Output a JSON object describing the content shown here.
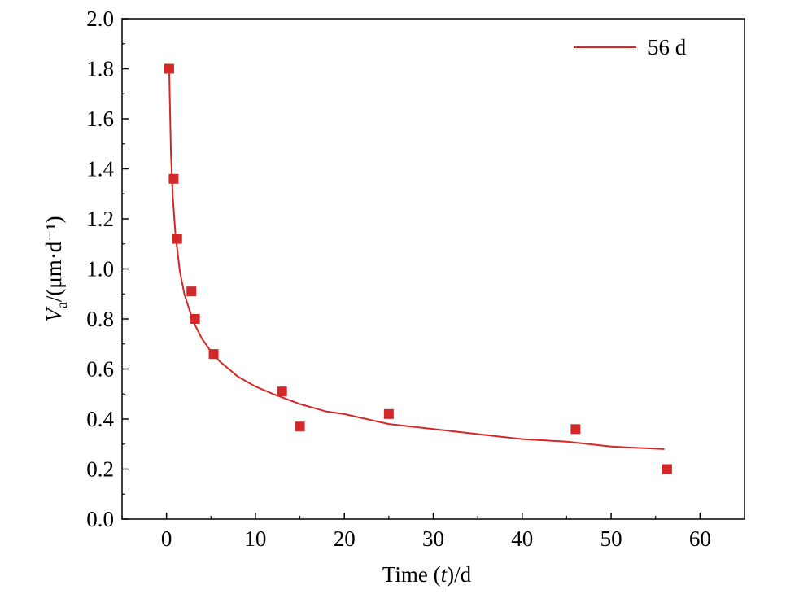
{
  "chart_data": {
    "type": "scatter",
    "x_label": "Time (t)/d",
    "y_label": "Va/(μm·d⁻¹)",
    "xlim": [
      -5,
      65
    ],
    "ylim": [
      0,
      2.0
    ],
    "x_ticks": [
      "0",
      "10",
      "20",
      "30",
      "40",
      "50",
      "60"
    ],
    "x_tick_values": [
      0,
      10,
      20,
      30,
      40,
      50,
      60
    ],
    "y_ticks": [
      "0.0",
      "0.2",
      "0.4",
      "0.6",
      "0.8",
      "1.0",
      "1.2",
      "1.4",
      "1.6",
      "1.8",
      "2.0"
    ],
    "y_tick_values": [
      0.0,
      0.2,
      0.4,
      0.6,
      0.8,
      1.0,
      1.2,
      1.4,
      1.6,
      1.8,
      2.0
    ],
    "legend_position": "top-right",
    "grid": false,
    "colors": {
      "series": "#d62728",
      "axis": "#000000"
    },
    "series": [
      {
        "name": "56 d",
        "kind": "fit-line",
        "x": [
          0.3,
          0.5,
          0.7,
          1,
          1.5,
          2,
          3,
          4,
          5,
          6,
          8,
          10,
          12,
          15,
          18,
          20,
          25,
          30,
          35,
          40,
          45,
          50,
          56
        ],
        "y": [
          1.8,
          1.46,
          1.29,
          1.14,
          0.99,
          0.9,
          0.79,
          0.72,
          0.67,
          0.63,
          0.57,
          0.53,
          0.5,
          0.46,
          0.43,
          0.42,
          0.38,
          0.36,
          0.34,
          0.32,
          0.31,
          0.29,
          0.28
        ]
      },
      {
        "name": "",
        "kind": "points",
        "x": [
          0.3,
          0.8,
          1.2,
          2.8,
          3.2,
          5.3,
          13,
          15,
          25,
          46,
          56.3
        ],
        "y": [
          1.8,
          1.36,
          1.12,
          0.91,
          0.8,
          0.66,
          0.51,
          0.37,
          0.42,
          0.36,
          0.2
        ]
      }
    ]
  }
}
